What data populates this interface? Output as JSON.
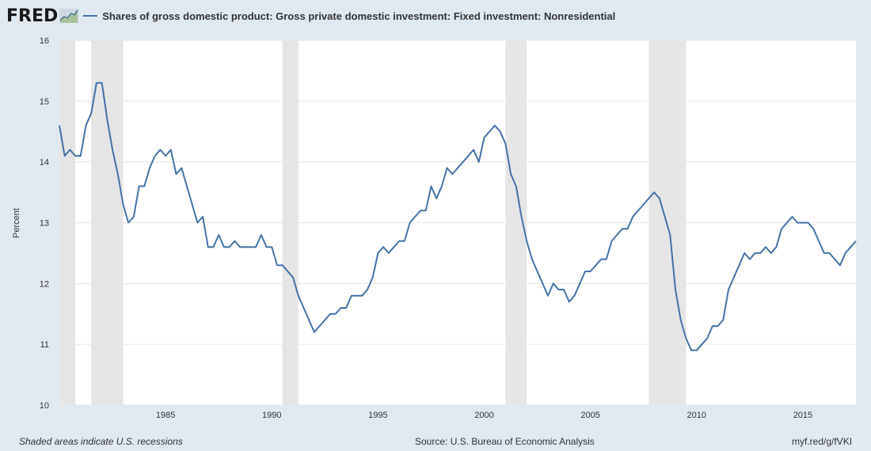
{
  "header": {
    "logo": "FRED",
    "title": "Shares of gross domestic product: Gross private domestic investment: Fixed investment: Nonresidential"
  },
  "footer": {
    "recession_note": "Shaded areas indicate U.S. recessions",
    "source": "Source: U.S. Bureau of Economic Analysis",
    "short_url": "myf.red/g/fVKI"
  },
  "colors": {
    "background": "#e1e9f0",
    "series": "#4572a7",
    "recession": "#e5e5e5",
    "grid": "#e6e6e6"
  },
  "chart_data": {
    "type": "line",
    "title": "Shares of gross domestic product: Gross private domestic investment: Fixed investment: Nonresidential",
    "xlabel": "",
    "ylabel": "Percent",
    "ylim": [
      10,
      16
    ],
    "xlim": [
      "1980-Q1",
      "2017-Q3"
    ],
    "frequency": "quarterly",
    "start": "1980-Q1",
    "grid": true,
    "legend": "top-left",
    "yticks": [
      "10",
      "11",
      "12",
      "13",
      "14",
      "15",
      "16"
    ],
    "xticks": [
      "1985",
      "1990",
      "1995",
      "2000",
      "2005",
      "2010",
      "2015"
    ],
    "recessions": [
      [
        "1980-Q1",
        "1980-Q3"
      ],
      [
        "1981-Q3",
        "1982-Q4"
      ],
      [
        "1990-Q3",
        "1991-Q1"
      ],
      [
        "2001-Q1",
        "2001-Q4"
      ],
      [
        "2007-Q4",
        "2009-Q2"
      ]
    ],
    "series": [
      {
        "name": "Shares of gross domestic product: Gross private domestic investment: Fixed investment: Nonresidential",
        "values": [
          14.6,
          14.1,
          14.2,
          14.1,
          14.1,
          14.6,
          14.8,
          15.3,
          15.3,
          14.7,
          14.2,
          13.8,
          13.3,
          13.0,
          13.1,
          13.6,
          13.6,
          13.9,
          14.1,
          14.2,
          14.1,
          14.2,
          13.8,
          13.9,
          13.6,
          13.3,
          13.0,
          13.1,
          12.6,
          12.6,
          12.8,
          12.6,
          12.6,
          12.7,
          12.6,
          12.6,
          12.6,
          12.6,
          12.8,
          12.6,
          12.6,
          12.3,
          12.3,
          12.2,
          12.1,
          11.8,
          11.6,
          11.4,
          11.2,
          11.3,
          11.4,
          11.5,
          11.5,
          11.6,
          11.6,
          11.8,
          11.8,
          11.8,
          11.9,
          12.1,
          12.5,
          12.6,
          12.5,
          12.6,
          12.7,
          12.7,
          13.0,
          13.1,
          13.2,
          13.2,
          13.6,
          13.4,
          13.6,
          13.9,
          13.8,
          13.9,
          14.0,
          14.1,
          14.2,
          14.0,
          14.4,
          14.5,
          14.6,
          14.5,
          14.3,
          13.8,
          13.6,
          13.1,
          12.7,
          12.4,
          12.2,
          12.0,
          11.8,
          12.0,
          11.9,
          11.9,
          11.7,
          11.8,
          12.0,
          12.2,
          12.2,
          12.3,
          12.4,
          12.4,
          12.7,
          12.8,
          12.9,
          12.9,
          13.1,
          13.2,
          13.3,
          13.4,
          13.5,
          13.4,
          13.1,
          12.8,
          11.9,
          11.4,
          11.1,
          10.9,
          10.9,
          11.0,
          11.1,
          11.3,
          11.3,
          11.4,
          11.9,
          12.1,
          12.3,
          12.5,
          12.4,
          12.5,
          12.5,
          12.6,
          12.5,
          12.6,
          12.9,
          13.0,
          13.1,
          13.0,
          13.0,
          13.0,
          12.9,
          12.7,
          12.5,
          12.5,
          12.4,
          12.3,
          12.5,
          12.6,
          12.7
        ]
      }
    ]
  }
}
